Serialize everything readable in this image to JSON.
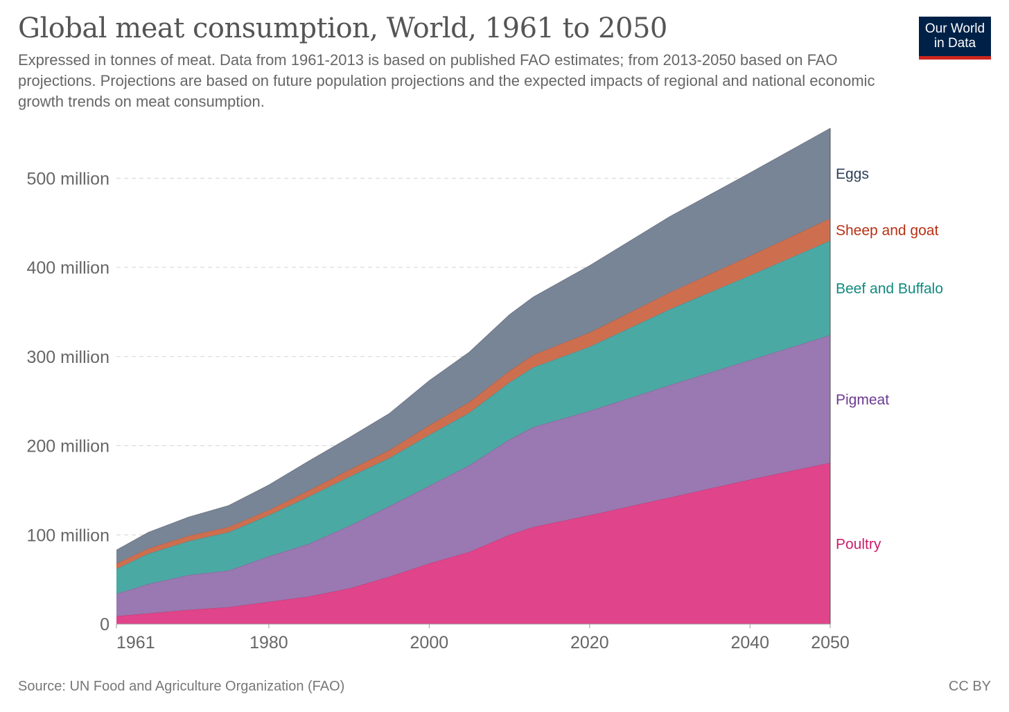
{
  "header": {
    "title": "Global meat consumption, World, 1961 to 2050",
    "subtitle": "Expressed in tonnes of meat. Data from 1961-2013 is based on published FAO estimates; from 2013-2050 based on FAO projections. Projections are based on future population projections and the expected impacts of regional and national economic growth trends on meat consumption."
  },
  "logo": {
    "line1": "Our World",
    "line2": "in Data",
    "bg_color": "#002147",
    "accent_color": "#ce261e"
  },
  "footer": {
    "source": "Source: UN Food and Agriculture Organization (FAO)",
    "license": "CC BY"
  },
  "chart_data": {
    "type": "area",
    "stacked": true,
    "x": [
      1961,
      1965,
      1970,
      1975,
      1980,
      1985,
      1990,
      1995,
      2000,
      2005,
      2010,
      2013,
      2020,
      2030,
      2040,
      2050
    ],
    "series": [
      {
        "name": "Poultry",
        "color": "#e0448b",
        "label_color": "#c8206e",
        "values": [
          9,
          12,
          16,
          19,
          25,
          31,
          40,
          53,
          68,
          81,
          100,
          109,
          122,
          142,
          162,
          181
        ]
      },
      {
        "name": "Pigmeat",
        "color": "#9a78b1",
        "label_color": "#6b3a91",
        "values": [
          25,
          33,
          39,
          41,
          51,
          59,
          70,
          79,
          87,
          97,
          107,
          112,
          117,
          126,
          134,
          143
        ]
      },
      {
        "name": "Beef and Buffalo",
        "color": "#4ba9a4",
        "label_color": "#108a80",
        "values": [
          28,
          34,
          38,
          43,
          46,
          53,
          55,
          54,
          57,
          59,
          64,
          67,
          72,
          85,
          95,
          106
        ]
      },
      {
        "name": "Sheep and goat",
        "color": "#cd6f4f",
        "label_color": "#b83012",
        "values": [
          6,
          6,
          6,
          6,
          6,
          7,
          8,
          9,
          11,
          12,
          13,
          14,
          16,
          19,
          22,
          25
        ]
      },
      {
        "name": "Eggs",
        "color": "#788596",
        "label_color": "#2c3e57",
        "values": [
          15,
          18,
          21,
          24,
          28,
          33,
          36,
          41,
          50,
          56,
          63,
          65,
          75,
          85,
          93,
          101
        ]
      }
    ],
    "xlim": [
      1961,
      2050
    ],
    "ylim": [
      0,
      560
    ],
    "y_ticks": [
      {
        "value": 0,
        "label": "0"
      },
      {
        "value": 100,
        "label": "100 million"
      },
      {
        "value": 200,
        "label": "200 million"
      },
      {
        "value": 300,
        "label": "300 million"
      },
      {
        "value": 400,
        "label": "400 million"
      },
      {
        "value": 500,
        "label": "500 million"
      }
    ],
    "x_ticks": [
      {
        "value": 1961,
        "label": "1961"
      },
      {
        "value": 1980,
        "label": "1980"
      },
      {
        "value": 2000,
        "label": "2000"
      },
      {
        "value": 2020,
        "label": "2020"
      },
      {
        "value": 2040,
        "label": "2040"
      },
      {
        "value": 2050,
        "label": "2050"
      }
    ],
    "unit": "million tonnes",
    "grid": true,
    "legend": "right-inline"
  }
}
